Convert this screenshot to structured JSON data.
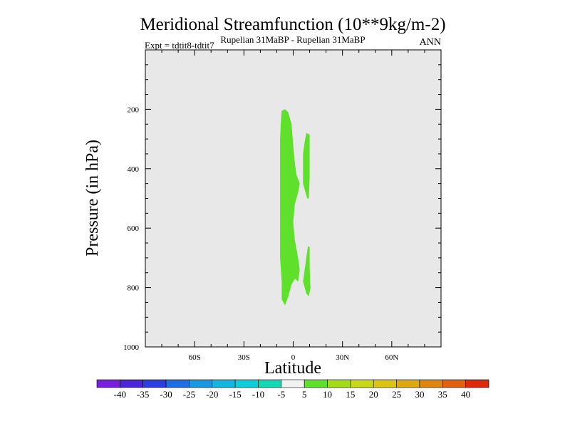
{
  "chart_data": {
    "type": "contour",
    "title": "Meridional Streamfunction (10**9kg/m-2)",
    "subtitle": "Rupelian  31MaBP - Rupelian  31MaBP",
    "experiment": "Expt = tdtit8-tdtit7",
    "season": "ANN",
    "xlabel": "Latitude",
    "ylabel": "Pressure (in hPa)",
    "xlim": [
      -90,
      90
    ],
    "ylim": [
      1000,
      0
    ],
    "x_ticks": [
      {
        "value": -60,
        "label": "60S"
      },
      {
        "value": -30,
        "label": "30S"
      },
      {
        "value": 0,
        "label": "0"
      },
      {
        "value": 30,
        "label": "30N"
      },
      {
        "value": 60,
        "label": "60N"
      }
    ],
    "y_ticks": [
      {
        "value": 200,
        "label": "200"
      },
      {
        "value": 400,
        "label": "400"
      },
      {
        "value": 600,
        "label": "600"
      },
      {
        "value": 800,
        "label": "800"
      },
      {
        "value": 1000,
        "label": "1000"
      }
    ],
    "colorbar": {
      "levels": [
        "-40",
        "-35",
        "-30",
        "-25",
        "-20",
        "-15",
        "-10",
        "-5",
        "5",
        "10",
        "15",
        "20",
        "25",
        "30",
        "35",
        "40"
      ],
      "colors": [
        "#7a1fe0",
        "#4b26d9",
        "#2a3fe0",
        "#1e6ee3",
        "#1a97e3",
        "#13b6e0",
        "#10cddb",
        "#13d8b4",
        "#f2f2f2",
        "#5fe02a",
        "#a2dc1a",
        "#c9d816",
        "#dcc414",
        "#e0a810",
        "#e08610",
        "#e0600e",
        "#dc2a0a"
      ]
    },
    "regions": [
      {
        "name": "positive-5-10-main",
        "color": "#5fe02a",
        "points": [
          [
            -7,
            205
          ],
          [
            -5,
            200
          ],
          [
            -3,
            210
          ],
          [
            -1,
            250
          ],
          [
            0,
            320
          ],
          [
            1,
            380
          ],
          [
            2,
            420
          ],
          [
            4,
            450
          ],
          [
            3,
            480
          ],
          [
            1,
            520
          ],
          [
            0,
            580
          ],
          [
            1,
            640
          ],
          [
            3,
            700
          ],
          [
            4,
            740
          ],
          [
            3,
            780
          ],
          [
            1,
            770
          ],
          [
            -1,
            790
          ],
          [
            -3,
            830
          ],
          [
            -5,
            860
          ],
          [
            -7,
            840
          ],
          [
            -7,
            780
          ],
          [
            -8,
            700
          ],
          [
            -8,
            600
          ],
          [
            -8,
            500
          ],
          [
            -8,
            400
          ],
          [
            -8,
            300
          ],
          [
            -7.5,
            240
          ]
        ]
      },
      {
        "name": "positive-5-10-upper-north",
        "color": "#5fe02a",
        "points": [
          [
            8,
            280
          ],
          [
            10,
            285
          ],
          [
            10,
            360
          ],
          [
            10,
            430
          ],
          [
            9.5,
            500
          ],
          [
            8.5,
            500
          ],
          [
            6,
            450
          ],
          [
            6,
            350
          ],
          [
            7,
            310
          ]
        ]
      },
      {
        "name": "positive-5-10-lower-north",
        "color": "#5fe02a",
        "points": [
          [
            9,
            660
          ],
          [
            10,
            665
          ],
          [
            10,
            730
          ],
          [
            10.5,
            800
          ],
          [
            9.5,
            830
          ],
          [
            8,
            820
          ],
          [
            6,
            780
          ],
          [
            7,
            740
          ],
          [
            8,
            700
          ]
        ]
      }
    ]
  }
}
